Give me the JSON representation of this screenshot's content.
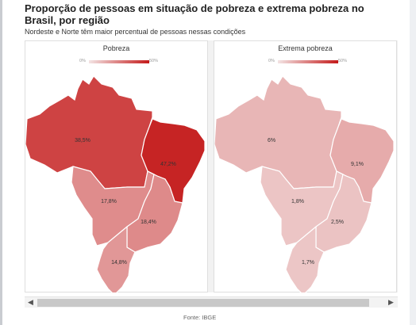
{
  "title": "Proporção de pessoas em situação de pobreza e extrema pobreza no Brasil, por região",
  "subtitle": "Nordeste e Norte têm maior percentual de pessoas nessas condições",
  "source": "Fonte: IBGE",
  "colors": {
    "low": "#f3e4e4",
    "high": "#c41a1a"
  },
  "chart_data": [
    {
      "type": "map",
      "title": "Pobreza",
      "legend": {
        "min_label": "0%",
        "max_label": "50%",
        "min": 0,
        "max": 50
      },
      "regions": [
        {
          "name": "Norte",
          "value": 38.5,
          "label": "38,5%"
        },
        {
          "name": "Nordeste",
          "value": 47.2,
          "label": "47,2%"
        },
        {
          "name": "Centro-Oeste",
          "value": 17.8,
          "label": "17,8%"
        },
        {
          "name": "Sudeste",
          "value": 18.4,
          "label": "18,4%"
        },
        {
          "name": "Sul",
          "value": 14.8,
          "label": "14,8%"
        }
      ]
    },
    {
      "type": "map",
      "title": "Extrema pobreza",
      "legend": {
        "min_label": "0%",
        "max_label": "50%",
        "min": 0,
        "max": 50
      },
      "regions": [
        {
          "name": "Norte",
          "value": 6,
          "label": "6%"
        },
        {
          "name": "Nordeste",
          "value": 9.1,
          "label": "9,1%"
        },
        {
          "name": "Centro-Oeste",
          "value": 1.8,
          "label": "1,8%"
        },
        {
          "name": "Sudeste",
          "value": 2.5,
          "label": "2,5%"
        },
        {
          "name": "Sul",
          "value": 1.7,
          "label": "1,7%"
        }
      ]
    }
  ],
  "scrollbar": {
    "left_arrow": "◀",
    "right_arrow": "▶"
  }
}
